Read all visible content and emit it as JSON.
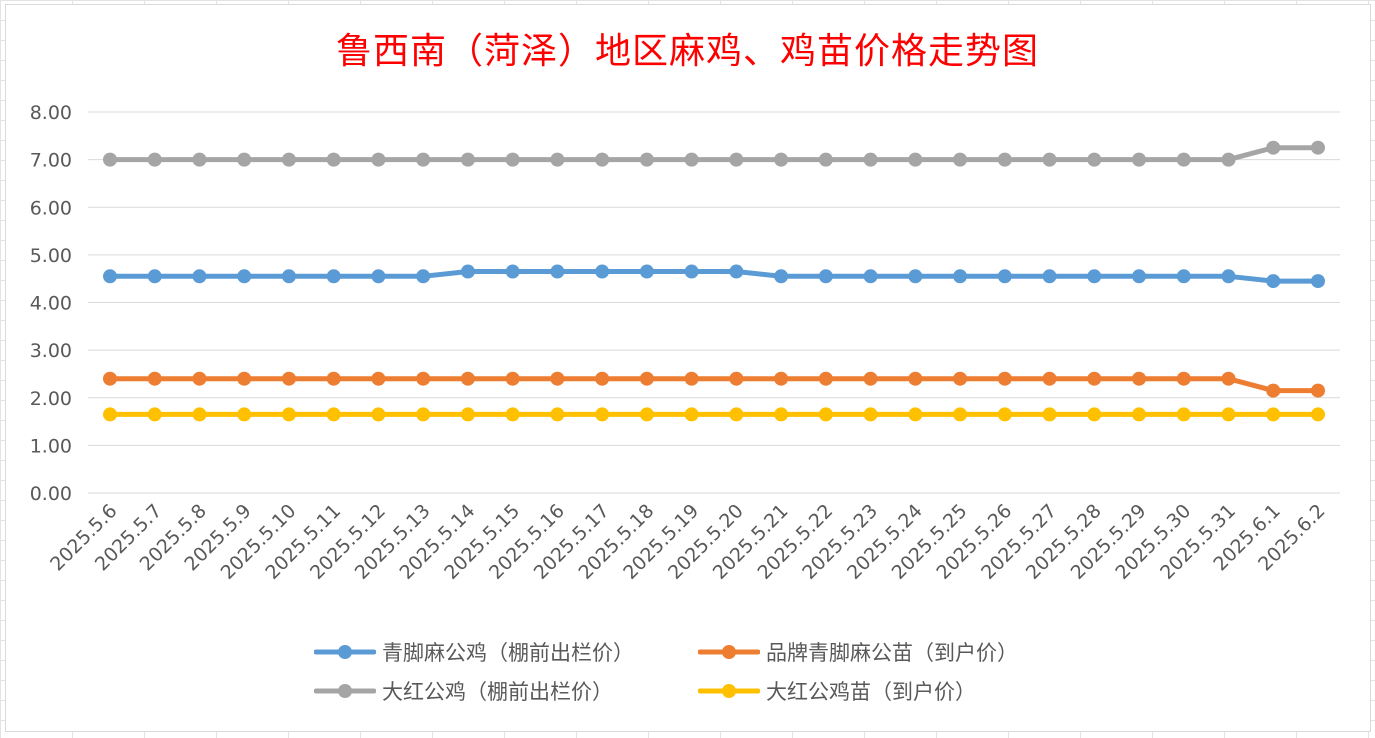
{
  "chart_data": {
    "type": "line",
    "title": "鲁西南（菏泽）地区麻鸡、鸡苗价格走势图",
    "xlabel": "",
    "ylabel": "",
    "ylim": [
      0,
      8
    ],
    "yticks": [
      "0.00",
      "1.00",
      "2.00",
      "3.00",
      "4.00",
      "5.00",
      "6.00",
      "7.00",
      "8.00"
    ],
    "grid": true,
    "legend_position": "bottom",
    "categories": [
      "2025.5.6",
      "2025.5.7",
      "2025.5.8",
      "2025.5.9",
      "2025.5.10",
      "2025.5.11",
      "2025.5.12",
      "2025.5.13",
      "2025.5.14",
      "2025.5.15",
      "2025.5.16",
      "2025.5.17",
      "2025.5.18",
      "2025.5.19",
      "2025.5.20",
      "2025.5.21",
      "2025.5.22",
      "2025.5.23",
      "2025.5.24",
      "2025.5.25",
      "2025.5.26",
      "2025.5.27",
      "2025.5.28",
      "2025.5.29",
      "2025.5.30",
      "2025.5.31",
      "2025.6.1",
      "2025.6.2"
    ],
    "series": [
      {
        "name": "青脚麻公鸡（棚前出栏价）",
        "color": "#5b9bd5",
        "values": [
          4.55,
          4.55,
          4.55,
          4.55,
          4.55,
          4.55,
          4.55,
          4.55,
          4.65,
          4.65,
          4.65,
          4.65,
          4.65,
          4.65,
          4.65,
          4.55,
          4.55,
          4.55,
          4.55,
          4.55,
          4.55,
          4.55,
          4.55,
          4.55,
          4.55,
          4.55,
          4.45,
          4.45
        ]
      },
      {
        "name": "品牌青脚麻公苗（到户价）",
        "color": "#ed7d31",
        "values": [
          2.4,
          2.4,
          2.4,
          2.4,
          2.4,
          2.4,
          2.4,
          2.4,
          2.4,
          2.4,
          2.4,
          2.4,
          2.4,
          2.4,
          2.4,
          2.4,
          2.4,
          2.4,
          2.4,
          2.4,
          2.4,
          2.4,
          2.4,
          2.4,
          2.4,
          2.4,
          2.15,
          2.15
        ]
      },
      {
        "name": "大红公鸡（棚前出栏价）",
        "color": "#a5a5a5",
        "values": [
          7.0,
          7.0,
          7.0,
          7.0,
          7.0,
          7.0,
          7.0,
          7.0,
          7.0,
          7.0,
          7.0,
          7.0,
          7.0,
          7.0,
          7.0,
          7.0,
          7.0,
          7.0,
          7.0,
          7.0,
          7.0,
          7.0,
          7.0,
          7.0,
          7.0,
          7.0,
          7.25,
          7.25
        ]
      },
      {
        "name": "大红公鸡苗（到户价）",
        "color": "#ffc000",
        "values": [
          1.65,
          1.65,
          1.65,
          1.65,
          1.65,
          1.65,
          1.65,
          1.65,
          1.65,
          1.65,
          1.65,
          1.65,
          1.65,
          1.65,
          1.65,
          1.65,
          1.65,
          1.65,
          1.65,
          1.65,
          1.65,
          1.65,
          1.65,
          1.65,
          1.65,
          1.65,
          1.65,
          1.65
        ]
      }
    ]
  },
  "colors": {
    "title": "#ff0000",
    "gridline": "#d9d9d9",
    "axis_text": "#595959"
  }
}
